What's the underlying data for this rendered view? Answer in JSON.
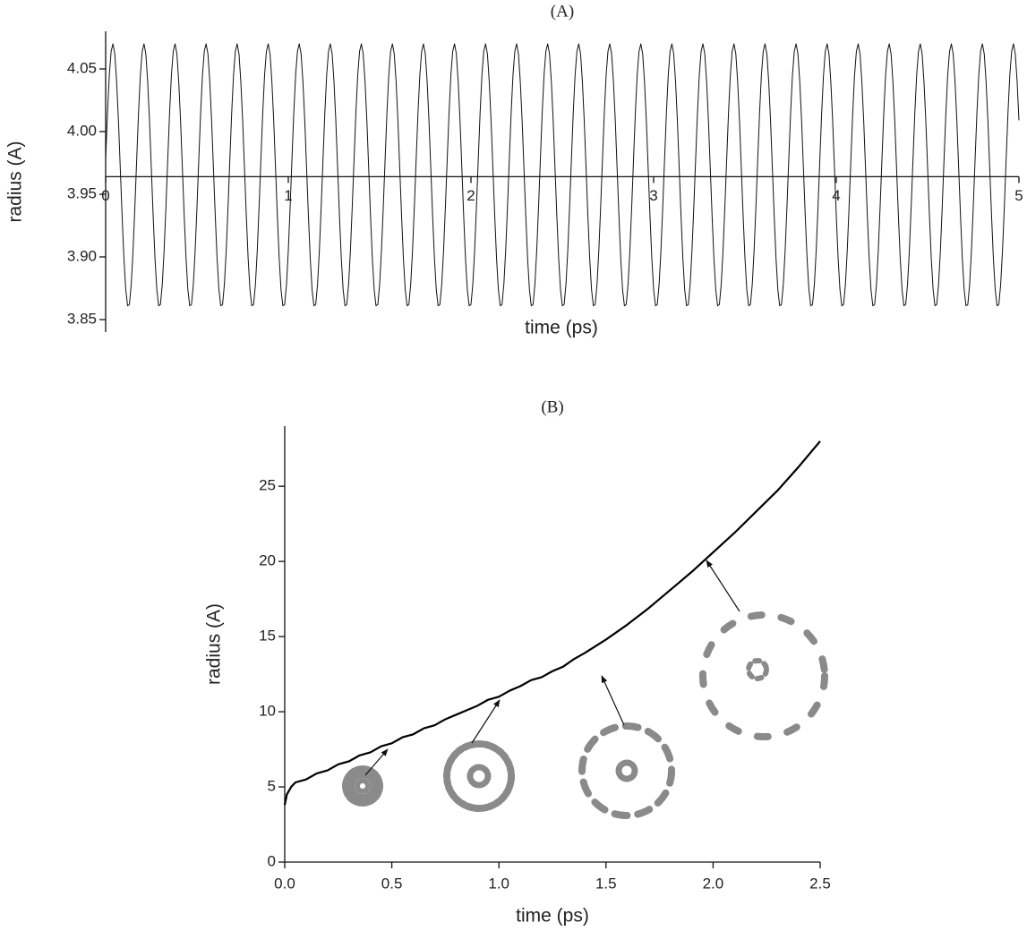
{
  "chart_data": [
    {
      "type": "line",
      "title": "(A)",
      "x_label": "time (ps)",
      "y_label": "radius (A)",
      "xlim": [
        0,
        5
      ],
      "ylim": [
        3.84,
        4.08
      ],
      "x_axis_position": 3.964,
      "xticks": [
        0,
        1,
        2,
        3,
        4,
        5
      ],
      "yticks": [
        3.85,
        {
          "value": 3.9,
          "label": "3.90"
        },
        3.95,
        {
          "value": 4,
          "label": "4.00"
        },
        4.05
      ],
      "color": "#111111",
      "x": [
        0,
        0.01,
        0.02,
        0.03,
        0.04,
        0.05,
        0.06,
        0.07,
        0.08,
        0.09,
        0.1,
        0.11,
        0.12,
        0.13,
        0.14,
        0.15,
        0.16,
        0.17,
        0.18,
        0.19,
        0.2,
        0.21,
        0.22,
        0.23,
        0.24,
        0.25,
        0.26,
        0.27,
        0.28,
        0.29,
        0.3,
        0.31,
        0.32,
        0.33,
        0.34,
        0.35,
        0.36,
        0.37,
        0.38,
        0.39,
        0.4,
        0.41,
        0.42,
        0.43,
        0.44,
        0.45,
        0.46,
        0.47,
        0.48,
        0.49,
        0.5,
        0.51,
        0.52,
        0.53,
        0.54,
        0.55,
        0.56,
        0.57,
        0.58,
        0.59,
        0.6,
        0.61,
        0.62,
        0.63,
        0.64,
        0.65,
        0.66,
        0.67,
        0.68,
        0.69,
        0.7,
        0.71,
        0.72,
        0.73,
        0.74,
        0.75,
        0.76,
        0.77,
        0.78,
        0.79,
        0.8,
        0.81,
        0.82,
        0.83,
        0.84,
        0.85,
        0.86,
        0.87,
        0.88,
        0.89,
        0.9,
        0.91,
        0.92,
        0.93,
        0.94,
        0.95,
        0.96,
        0.97,
        0.98,
        0.99,
        1,
        1.01,
        1.02,
        1.03,
        1.04,
        1.05,
        1.06,
        1.07,
        1.08,
        1.09,
        1.1,
        1.11,
        1.12,
        1.13,
        1.14,
        1.15,
        1.16,
        1.17,
        1.18,
        1.19,
        1.2,
        1.21,
        1.22,
        1.23,
        1.24,
        1.25,
        1.26,
        1.27,
        1.28,
        1.29,
        1.3,
        1.31,
        1.32,
        1.33,
        1.34,
        1.35,
        1.36,
        1.37,
        1.38,
        1.39,
        1.4,
        1.41,
        1.42,
        1.43,
        1.44,
        1.45,
        1.46,
        1.47,
        1.48,
        1.49,
        1.5,
        1.51,
        1.52,
        1.53,
        1.54,
        1.55,
        1.56,
        1.57,
        1.58,
        1.59,
        1.6,
        1.61,
        1.62,
        1.63,
        1.64,
        1.65,
        1.66,
        1.67,
        1.68,
        1.69,
        1.7,
        1.71,
        1.72,
        1.73,
        1.74,
        1.75,
        1.76,
        1.77,
        1.78,
        1.79,
        1.8,
        1.81,
        1.82,
        1.83,
        1.84,
        1.85,
        1.86,
        1.87,
        1.88,
        1.89,
        1.9,
        1.91,
        1.92,
        1.93,
        1.94,
        1.95,
        1.96,
        1.97,
        1.98,
        1.99,
        2,
        2.01,
        2.02,
        2.03,
        2.04,
        2.05,
        2.06,
        2.07,
        2.08,
        2.09,
        2.1,
        2.11,
        2.12,
        2.13,
        2.14,
        2.15,
        2.16,
        2.17,
        2.18,
        2.19,
        2.2,
        2.21,
        2.22,
        2.23,
        2.24,
        2.25,
        2.26,
        2.27,
        2.28,
        2.29,
        2.3,
        2.31,
        2.32,
        2.33,
        2.34,
        2.35,
        2.36,
        2.37,
        2.38,
        2.39,
        2.4,
        2.41,
        2.42,
        2.43,
        2.44,
        2.45,
        2.46,
        2.47,
        2.48,
        2.49,
        2.5,
        2.51,
        2.52,
        2.53,
        2.54,
        2.55,
        2.56,
        2.57,
        2.58,
        2.59,
        2.6,
        2.61,
        2.62,
        2.63,
        2.64,
        2.65,
        2.66,
        2.67,
        2.68,
        2.69,
        2.7,
        2.71,
        2.72,
        2.73,
        2.74,
        2.75,
        2.76,
        2.77,
        2.78,
        2.79,
        2.8,
        2.81,
        2.82,
        2.83,
        2.84,
        2.85,
        2.86,
        2.87,
        2.88,
        2.89,
        2.9,
        2.91,
        2.92,
        2.93,
        2.94,
        2.95,
        2.96,
        2.97,
        2.98,
        2.99,
        3,
        3.01,
        3.02,
        3.03,
        3.04,
        3.05,
        3.06,
        3.07,
        3.08,
        3.09,
        3.1,
        3.11,
        3.12,
        3.13,
        3.14,
        3.15,
        3.16,
        3.17,
        3.18,
        3.19,
        3.2,
        3.21,
        3.22,
        3.23,
        3.24,
        3.25,
        3.26,
        3.27,
        3.28,
        3.29,
        3.3,
        3.31,
        3.32,
        3.33,
        3.34,
        3.35,
        3.36,
        3.37,
        3.38,
        3.39,
        3.4,
        3.41,
        3.42,
        3.43,
        3.44,
        3.45,
        3.46,
        3.47,
        3.48,
        3.49,
        3.5,
        3.51,
        3.52,
        3.53,
        3.54,
        3.55,
        3.56,
        3.57,
        3.58,
        3.59,
        3.6,
        3.61,
        3.62,
        3.63,
        3.64,
        3.65,
        3.66,
        3.67,
        3.68,
        3.69,
        3.7,
        3.71,
        3.72,
        3.73,
        3.74,
        3.75,
        3.76,
        3.77,
        3.78,
        3.79,
        3.8,
        3.81,
        3.82,
        3.83,
        3.84,
        3.85,
        3.86,
        3.87,
        3.88,
        3.89,
        3.9,
        3.91,
        3.92,
        3.93,
        3.94,
        3.95,
        3.96,
        3.97,
        3.98,
        3.99,
        4,
        4.01,
        4.02,
        4.03,
        4.04,
        4.05,
        4.06,
        4.07,
        4.08,
        4.09,
        4.1,
        4.11,
        4.12,
        4.13,
        4.14,
        4.15,
        4.16,
        4.17,
        4.18,
        4.19,
        4.2,
        4.21,
        4.22,
        4.23,
        4.24,
        4.25,
        4.26,
        4.27,
        4.28,
        4.29,
        4.3,
        4.31,
        4.32,
        4.33,
        4.34,
        4.35,
        4.36,
        4.37,
        4.38,
        4.39,
        4.4,
        4.41,
        4.42,
        4.43,
        4.44,
        4.45,
        4.46,
        4.47,
        4.48,
        4.49,
        4.5,
        4.51,
        4.52,
        4.53,
        4.54,
        4.55,
        4.56,
        4.57,
        4.58,
        4.59,
        4.6,
        4.61,
        4.62,
        4.63,
        4.64,
        4.65,
        4.66,
        4.67,
        4.68,
        4.69,
        4.7,
        4.71,
        4.72,
        4.73,
        4.74,
        4.75,
        4.76,
        4.77,
        4.78,
        4.79,
        4.8,
        4.81,
        4.82,
        4.83,
        4.84,
        4.85,
        4.86,
        4.87,
        4.88,
        4.89,
        4.9,
        4.91,
        4.92,
        4.93,
        4.94,
        4.95,
        4.96,
        4.97,
        4.98,
        4.99,
        5
      ],
      "values": [
        3.978,
        4.015,
        4.045,
        4.064,
        4.07,
        4.062,
        4.04,
        4.009,
        3.971,
        3.933,
        3.899,
        3.874,
        3.861,
        3.862,
        3.878,
        3.905,
        3.94,
        3.978,
        4.015,
        4.045,
        4.064,
        4.07,
        4.062,
        4.04,
        4.009,
        3.971,
        3.933,
        3.899,
        3.874,
        3.861,
        3.862,
        3.878,
        3.905,
        3.94,
        3.978,
        4.015,
        4.045,
        4.064,
        4.07,
        4.062,
        4.04,
        4.009,
        3.971,
        3.933,
        3.899,
        3.874,
        3.861,
        3.862,
        3.878,
        3.905,
        3.94,
        3.978,
        4.015,
        4.045,
        4.064,
        4.07,
        4.062,
        4.04,
        4.009,
        3.971,
        3.933,
        3.899,
        3.874,
        3.861,
        3.862,
        3.878,
        3.905,
        3.94,
        3.978,
        4.015,
        4.045,
        4.064,
        4.07,
        4.062,
        4.04,
        4.009,
        3.971,
        3.933,
        3.899,
        3.874,
        3.861,
        3.862,
        3.878,
        3.905,
        3.94,
        3.978,
        4.015,
        4.045,
        4.064,
        4.07,
        4.062,
        4.04,
        4.009,
        3.971,
        3.933,
        3.899,
        3.874,
        3.861,
        3.862,
        3.878,
        3.905,
        3.94,
        3.978,
        4.015,
        4.045,
        4.064,
        4.07,
        4.062,
        4.04,
        4.009,
        3.971,
        3.933,
        3.899,
        3.874,
        3.861,
        3.862,
        3.878,
        3.905,
        3.94,
        3.978,
        4.015,
        4.045,
        4.064,
        4.07,
        4.062,
        4.04,
        4.009,
        3.971,
        3.933,
        3.899,
        3.874,
        3.861,
        3.862,
        3.878,
        3.905,
        3.94,
        3.978,
        4.015,
        4.045,
        4.064,
        4.07,
        4.062,
        4.04,
        4.009,
        3.971,
        3.933,
        3.899,
        3.874,
        3.861,
        3.862,
        3.878,
        3.905,
        3.94,
        3.978,
        4.015,
        4.045,
        4.064,
        4.07,
        4.062,
        4.04,
        4.009,
        3.971,
        3.933,
        3.899,
        3.874,
        3.861,
        3.862,
        3.878,
        3.905,
        3.94,
        3.978,
        4.015,
        4.045,
        4.064,
        4.07,
        4.062,
        4.04,
        4.009,
        3.971,
        3.933,
        3.899,
        3.874,
        3.861,
        3.862,
        3.878,
        3.905,
        3.94,
        3.978,
        4.015,
        4.045,
        4.064,
        4.07,
        4.062,
        4.04,
        4.009,
        3.971,
        3.933,
        3.899,
        3.874,
        3.861,
        3.862,
        3.878,
        3.905,
        3.94,
        3.978,
        4.015,
        4.045,
        4.064,
        4.07,
        4.062,
        4.04,
        4.009,
        3.971,
        3.933,
        3.899,
        3.874,
        3.861,
        3.862,
        3.878,
        3.905,
        3.94,
        3.978,
        4.015,
        4.045,
        4.064,
        4.07,
        4.062,
        4.04,
        4.009,
        3.971,
        3.933,
        3.899,
        3.874,
        3.861,
        3.862,
        3.878,
        3.905,
        3.94,
        3.978,
        4.015,
        4.045,
        4.064,
        4.07,
        4.062,
        4.04,
        4.009,
        3.971,
        3.933,
        3.899,
        3.874,
        3.861,
        3.862,
        3.878,
        3.905,
        3.94,
        3.978,
        4.015,
        4.045,
        4.064,
        4.07,
        4.062,
        4.04,
        4.009,
        3.971,
        3.933,
        3.899,
        3.874,
        3.861,
        3.862,
        3.878,
        3.905,
        3.94,
        3.978,
        4.015,
        4.045,
        4.064,
        4.07,
        4.062,
        4.04,
        4.009,
        3.971,
        3.933,
        3.899,
        3.874,
        3.861,
        3.862,
        3.878,
        3.905,
        3.94,
        3.978,
        4.015,
        4.045,
        4.064,
        4.07,
        4.062,
        4.04,
        4.009,
        3.971,
        3.933,
        3.899,
        3.874,
        3.861,
        3.862,
        3.878,
        3.905,
        3.94,
        3.978,
        4.015,
        4.045,
        4.064,
        4.07,
        4.062,
        4.04,
        4.009,
        3.971,
        3.933,
        3.899,
        3.874,
        3.861,
        3.862,
        3.878,
        3.905,
        3.94,
        3.978,
        4.015,
        4.045,
        4.064,
        4.07,
        4.062,
        4.04,
        4.009,
        3.971,
        3.933,
        3.899,
        3.874,
        3.861,
        3.862,
        3.878,
        3.905,
        3.94,
        3.978,
        4.015,
        4.045,
        4.064,
        4.07,
        4.062,
        4.04,
        4.009,
        3.971,
        3.933,
        3.899,
        3.874,
        3.861,
        3.862,
        3.878,
        3.905,
        3.94,
        3.978,
        4.015,
        4.045,
        4.064,
        4.07,
        4.062,
        4.04,
        4.009,
        3.971,
        3.933,
        3.899,
        3.874,
        3.861,
        3.862,
        3.878,
        3.905,
        3.94,
        3.978,
        4.015,
        4.045,
        4.064,
        4.07,
        4.062,
        4.04,
        4.009,
        3.971,
        3.933,
        3.899,
        3.874,
        3.861,
        3.862,
        3.878,
        3.905,
        3.94,
        3.978,
        4.015,
        4.045,
        4.064,
        4.07,
        4.062,
        4.04,
        4.009,
        3.971,
        3.933,
        3.899,
        3.874,
        3.861,
        3.862,
        3.878,
        3.905,
        3.94,
        3.978,
        4.015,
        4.045,
        4.064,
        4.07,
        4.062,
        4.04,
        4.009,
        3.971,
        3.933,
        3.899,
        3.874,
        3.861,
        3.862,
        3.878,
        3.905,
        3.94,
        3.978,
        4.015,
        4.045,
        4.064,
        4.07,
        4.062,
        4.04,
        4.009,
        3.971,
        3.933,
        3.899,
        3.874,
        3.861,
        3.862,
        3.878,
        3.905,
        3.94,
        3.978,
        4.015,
        4.045,
        4.064,
        4.07,
        4.062,
        4.04,
        4.009,
        3.971,
        3.933,
        3.899,
        3.874,
        3.861,
        3.862,
        3.878,
        3.905,
        3.94,
        3.978,
        4.015,
        4.045,
        4.064,
        4.07,
        4.062,
        4.04,
        4.009,
        3.971,
        3.933,
        3.899,
        3.874,
        3.861,
        3.862,
        3.878,
        3.905,
        3.94,
        3.978,
        4.015,
        4.045,
        4.064,
        4.07,
        4.062,
        4.04,
        4.009,
        3.971,
        3.933,
        3.899,
        3.874,
        3.861,
        3.862,
        3.878,
        3.905,
        3.94,
        3.978,
        4.015,
        4.045,
        4.064,
        4.07,
        4.062,
        4.04,
        4.009
      ]
    },
    {
      "type": "line",
      "title": "(B)",
      "x_label": "time (ps)",
      "y_label": "radius (A)",
      "xlim": [
        0,
        2.5
      ],
      "ylim": [
        0,
        29
      ],
      "xticks": [
        {
          "value": 0,
          "label": "0.0"
        },
        0.5,
        {
          "value": 1,
          "label": "1.0"
        },
        1.5,
        {
          "value": 2,
          "label": "2.0"
        },
        2.5
      ],
      "yticks": [
        0,
        5,
        10,
        15,
        20,
        25
      ],
      "color": "#000000",
      "x": [
        0,
        0.01,
        0.03,
        0.05,
        0.1,
        0.15,
        0.2,
        0.25,
        0.3,
        0.35,
        0.4,
        0.45,
        0.5,
        0.55,
        0.6,
        0.65,
        0.7,
        0.75,
        0.8,
        0.85,
        0.9,
        0.95,
        1,
        1.05,
        1.1,
        1.15,
        1.2,
        1.25,
        1.3,
        1.35,
        1.4,
        1.5,
        1.6,
        1.7,
        1.8,
        1.9,
        2,
        2.1,
        2.2,
        2.3,
        2.4,
        2.5
      ],
      "values": [
        3.8,
        4.5,
        5.0,
        5.3,
        5.5,
        5.9,
        6.1,
        6.5,
        6.7,
        7.1,
        7.3,
        7.7,
        7.9,
        8.3,
        8.5,
        8.9,
        9.1,
        9.5,
        9.8,
        10.1,
        10.4,
        10.8,
        11.0,
        11.4,
        11.7,
        12.1,
        12.3,
        12.7,
        13.0,
        13.5,
        13.9,
        14.8,
        15.8,
        16.9,
        18.1,
        19.3,
        20.6,
        21.9,
        23.3,
        24.7,
        26.3,
        28.0
      ]
    }
  ]
}
